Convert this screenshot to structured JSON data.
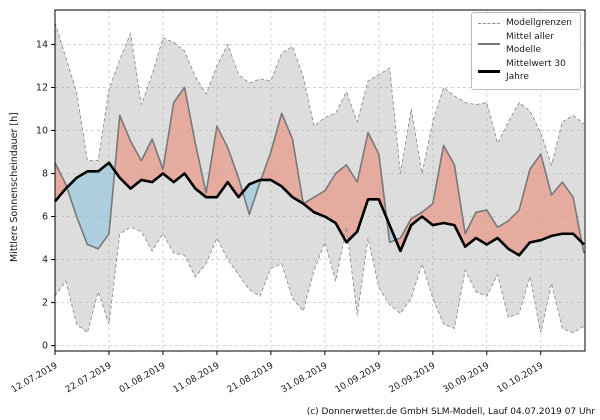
{
  "footer": "(c) Donnerwetter.de GmbH SLM-Modell, Lauf 04.07.2019 07 Uhr",
  "chart_data": {
    "type": "line",
    "title": "",
    "xlabel": "",
    "ylabel": "Mittlere Sonnenscheindauer [h]",
    "grid": true,
    "legend": {
      "position": "upper right",
      "entries": [
        "Modellgrenzen",
        "Mittel aller Modelle",
        "Mittelwert 30 Jahre"
      ]
    },
    "x_unit": "days since 12.07.2019",
    "xlim": [
      0,
      98.2
    ],
    "ylim": [
      -0.25,
      15.6
    ],
    "y_ticks": [
      0,
      2,
      4,
      6,
      8,
      10,
      12,
      14
    ],
    "x_tick_days": [
      0,
      10,
      20,
      30,
      40,
      50,
      60,
      70,
      80,
      90
    ],
    "x_tick_labels": [
      "12.07.2019",
      "22.07.2019",
      "01.08.2019",
      "11.08.2019",
      "21.08.2019",
      "31.08.2019",
      "10.09.2019",
      "20.09.2019",
      "30.09.2019",
      "10.10.2019"
    ],
    "x_days": [
      0,
      2,
      4,
      6,
      8,
      10,
      12,
      14,
      16,
      18,
      20,
      22,
      24,
      26,
      28,
      30,
      32,
      34,
      36,
      38,
      40,
      42,
      44,
      46,
      48,
      50,
      52,
      54,
      56,
      58,
      60,
      62,
      64,
      66,
      68,
      70,
      72,
      74,
      76,
      78,
      80,
      82,
      84,
      86,
      88,
      90,
      92,
      94,
      96,
      98
    ],
    "series": [
      {
        "name": "Modellgrenzen (obere Grenze)",
        "style": "dashed",
        "color": "#8f8f8f",
        "values": [
          15.0,
          13.4,
          11.8,
          8.6,
          8.6,
          11.9,
          13.3,
          14.5,
          11.2,
          12.6,
          14.3,
          14.1,
          13.7,
          12.5,
          11.7,
          13.0,
          14.0,
          12.6,
          12.2,
          12.4,
          12.3,
          13.6,
          13.9,
          12.5,
          10.2,
          10.6,
          10.8,
          11.8,
          10.4,
          12.3,
          12.6,
          12.9,
          8.0,
          11.0,
          8.0,
          10.4,
          12.0,
          11.6,
          11.3,
          11.2,
          11.3,
          9.4,
          10.4,
          11.3,
          10.9,
          9.9,
          8.4,
          10.4,
          10.7,
          10.3
        ]
      },
      {
        "name": "Modellgrenzen (untere Grenze)",
        "style": "dashed",
        "color": "#8f8f8f",
        "values": [
          2.3,
          3.0,
          1.0,
          0.6,
          2.5,
          1.0,
          5.2,
          5.5,
          5.3,
          4.4,
          5.2,
          4.3,
          4.2,
          3.2,
          3.8,
          5.0,
          4.0,
          3.3,
          2.6,
          2.3,
          3.6,
          3.8,
          2.2,
          1.6,
          3.5,
          4.8,
          3.0,
          5.5,
          1.4,
          5.0,
          2.7,
          1.9,
          1.5,
          2.2,
          3.8,
          2.2,
          1.0,
          0.8,
          3.5,
          2.5,
          2.3,
          3.3,
          1.3,
          1.5,
          3.2,
          0.6,
          2.9,
          0.8,
          0.6,
          0.9
        ]
      },
      {
        "name": "Mittel aller Modelle",
        "style": "solid",
        "color": "#787878",
        "values": [
          8.5,
          7.5,
          6.0,
          4.7,
          4.5,
          5.2,
          10.7,
          9.5,
          8.6,
          9.6,
          8.2,
          11.3,
          12.0,
          9.4,
          7.1,
          10.2,
          9.2,
          7.8,
          6.1,
          7.6,
          9.0,
          10.8,
          9.6,
          6.6,
          6.9,
          7.2,
          8.0,
          8.4,
          7.6,
          9.9,
          8.9,
          4.8,
          5.0,
          5.9,
          6.2,
          6.6,
          9.3,
          8.4,
          5.2,
          6.2,
          6.3,
          5.5,
          5.8,
          6.3,
          8.2,
          8.9,
          7.0,
          7.6,
          6.9,
          4.3
        ]
      },
      {
        "name": "Mittelwert 30 Jahre",
        "style": "solid-thick",
        "color": "#000000",
        "values": [
          6.7,
          7.3,
          7.8,
          8.1,
          8.1,
          8.5,
          7.8,
          7.3,
          7.7,
          7.6,
          8.0,
          7.6,
          8.0,
          7.3,
          6.9,
          6.9,
          7.6,
          6.9,
          7.5,
          7.7,
          7.7,
          7.4,
          6.9,
          6.6,
          6.2,
          6.0,
          5.7,
          4.8,
          5.3,
          6.8,
          6.8,
          5.6,
          4.4,
          5.6,
          6.0,
          5.6,
          5.7,
          5.6,
          4.6,
          5.0,
          4.7,
          5.0,
          4.5,
          4.2,
          4.8,
          4.9,
          5.1,
          5.2,
          5.2,
          4.7
        ]
      }
    ],
    "bands": {
      "envelope_fill": "#aaaaaa",
      "above_climate_fill": "#e8998a",
      "below_climate_fill": "#8ec4e0",
      "description": "grau = Spannweite der Modelle; rot = Modellmittel ueber 30-Jahre-Mittel; blau = darunter"
    }
  },
  "colors": {
    "grid": "#c9c9c9",
    "frame": "#000000",
    "tick_text": "#1a1a1a",
    "legend_border": "#bdbdbd"
  }
}
